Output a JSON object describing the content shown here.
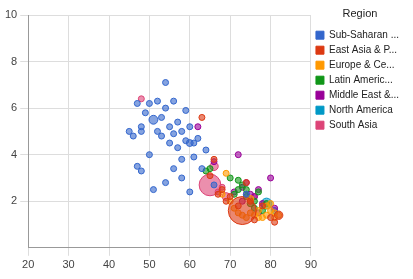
{
  "chart_data": {
    "type": "bubble",
    "legend_title": "Region",
    "legend": "right",
    "grid": true,
    "xlim": [
      20,
      90
    ],
    "xticks": [
      20,
      30,
      40,
      50,
      60,
      70,
      80,
      90
    ],
    "ylim": [
      0,
      10
    ],
    "yticks": [
      2,
      4,
      6,
      8,
      10
    ],
    "series": [
      {
        "name": "Sub-Saharan ...",
        "color": "#3366cc",
        "x": [
          47,
          48,
          48,
          49,
          50,
          51,
          52,
          52,
          53,
          53,
          54,
          54,
          55,
          55,
          56,
          56,
          57,
          57,
          58,
          58,
          59,
          59,
          60,
          60,
          61,
          61,
          62,
          63,
          64,
          48,
          47,
          50,
          51,
          54,
          56,
          58,
          60,
          45,
          46,
          74,
          66
        ],
        "y": [
          6.2,
          5.0,
          5.2,
          5.8,
          6.2,
          5.5,
          5.0,
          6.3,
          4.8,
          5.6,
          7.1,
          6.0,
          5.2,
          4.5,
          6.3,
          4.9,
          5.4,
          4.3,
          5.0,
          3.8,
          4.6,
          5.9,
          4.5,
          5.2,
          3.9,
          4.5,
          4.7,
          3.4,
          4.2,
          3.3,
          3.5,
          4.0,
          2.5,
          2.8,
          3.4,
          3.0,
          2.4,
          5.0,
          4.8,
          2.3,
          2.7
        ],
        "sizes": [
          2,
          2,
          2,
          3,
          2,
          10,
          2,
          2,
          3,
          2,
          1,
          2,
          3,
          2,
          2,
          2,
          2,
          2,
          3,
          2,
          2,
          2,
          6,
          2,
          2,
          2,
          2,
          2,
          2,
          1,
          1,
          2,
          3,
          1,
          2,
          1,
          1,
          1,
          1,
          1,
          1
        ]
      },
      {
        "name": "East Asia & P...",
        "color": "#dc3912",
        "x": [
          73,
          82,
          70,
          76,
          80,
          72,
          75,
          78,
          81,
          65,
          69,
          66,
          74,
          67,
          63,
          68
        ],
        "y": [
          1.6,
          1.4,
          2.2,
          1.2,
          1.3,
          1.8,
          2.0,
          1.8,
          1.1,
          3.1,
          2.0,
          3.8,
          2.8,
          2.3,
          5.6,
          2.5
        ],
        "sizes": [
          100,
          9,
          4,
          2,
          3,
          2,
          2,
          1,
          1,
          2,
          3,
          1,
          2,
          1,
          1,
          2
        ]
      },
      {
        "name": "Europe & Ce...",
        "color": "#ff9900",
        "x": [
          72,
          73,
          74,
          75,
          76,
          77,
          78,
          79,
          80,
          81,
          82,
          80,
          70,
          68,
          71,
          79,
          81,
          75,
          69,
          77
        ],
        "y": [
          1.5,
          1.4,
          1.3,
          1.5,
          1.4,
          1.6,
          1.3,
          1.8,
          1.9,
          1.5,
          1.4,
          1.6,
          2.0,
          2.3,
          1.7,
          1.4,
          1.3,
          2.1,
          3.2,
          1.3
        ],
        "sizes": [
          2,
          2,
          2,
          2,
          3,
          2,
          2,
          4,
          4,
          3,
          3,
          4,
          2,
          2,
          2,
          3,
          2,
          6,
          2,
          2
        ]
      },
      {
        "name": "Latin Americ...",
        "color": "#109618",
        "x": [
          70,
          72,
          74,
          75,
          76,
          77,
          78,
          73,
          65,
          71,
          79,
          74,
          72,
          76,
          64
        ],
        "y": [
          3.0,
          2.5,
          2.2,
          1.9,
          2.0,
          2.4,
          1.6,
          2.7,
          3.4,
          2.3,
          1.9,
          2.5,
          2.9,
          1.7,
          3.3
        ],
        "sizes": [
          2,
          3,
          4,
          5,
          3,
          2,
          2,
          2,
          1,
          2,
          2,
          2,
          1,
          2,
          1
        ]
      },
      {
        "name": "Middle East &...",
        "color": "#990099",
        "x": [
          72,
          73,
          74,
          76,
          78,
          77,
          73,
          71,
          81,
          66,
          75,
          77,
          62,
          80
        ],
        "y": [
          4.0,
          2.6,
          2.8,
          2.2,
          1.9,
          2.5,
          2.0,
          2.4,
          1.7,
          3.7,
          2.3,
          1.5,
          5.2,
          3.0
        ],
        "sizes": [
          1,
          2,
          3,
          4,
          2,
          2,
          3,
          2,
          2,
          2,
          2,
          1,
          2,
          1
        ]
      },
      {
        "name": "North America",
        "color": "#0099c6",
        "x": [
          79,
          81
        ],
        "y": [
          1.9,
          1.6
        ],
        "sizes": [
          15,
          4
        ]
      },
      {
        "name": "South Asia",
        "color": "#dd4477",
        "x": [
          65,
          66,
          69,
          48,
          68,
          74,
          67,
          76
        ],
        "y": [
          2.7,
          3.5,
          2.2,
          6.4,
          2.6,
          2.3,
          2.4,
          2.2
        ],
        "sizes": [
          60,
          9,
          8,
          2,
          2,
          2,
          1,
          1
        ]
      }
    ]
  }
}
